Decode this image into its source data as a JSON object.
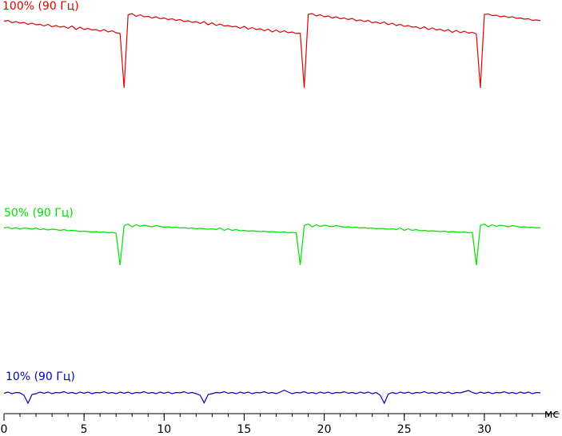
{
  "chart_data": {
    "type": "line",
    "x_label": "мс",
    "xlim": [
      0,
      34.7
    ],
    "xticks": [
      0,
      5,
      10,
      15,
      20,
      25,
      30
    ],
    "xminorticks": [
      0,
      1,
      2,
      3,
      4,
      5,
      6,
      7,
      8,
      9,
      10,
      11,
      12,
      13,
      14,
      15,
      16,
      17,
      18,
      19,
      20,
      21,
      22,
      23,
      24,
      25,
      26,
      27,
      28,
      29,
      30,
      31,
      32,
      33,
      34
    ],
    "x": [
      0,
      0.25,
      0.5,
      0.75,
      1,
      1.25,
      1.5,
      1.75,
      2,
      2.25,
      2.5,
      2.75,
      3,
      3.25,
      3.5,
      3.75,
      4,
      4.25,
      4.5,
      4.75,
      5,
      5.25,
      5.5,
      5.75,
      6,
      6.25,
      6.5,
      6.75,
      7,
      7.25,
      7.5,
      7.75,
      8,
      8.25,
      8.5,
      8.75,
      9,
      9.25,
      9.5,
      9.75,
      10,
      10.25,
      10.5,
      10.75,
      11,
      11.25,
      11.5,
      11.75,
      12,
      12.25,
      12.5,
      12.75,
      13,
      13.25,
      13.5,
      13.75,
      14,
      14.25,
      14.5,
      14.75,
      15,
      15.25,
      15.5,
      15.75,
      16,
      16.25,
      16.5,
      16.75,
      17,
      17.25,
      17.5,
      17.75,
      18,
      18.25,
      18.5,
      18.75,
      19,
      19.25,
      19.5,
      19.75,
      20,
      20.25,
      20.5,
      20.75,
      21,
      21.25,
      21.5,
      21.75,
      22,
      22.25,
      22.5,
      22.75,
      23,
      23.25,
      23.5,
      23.75,
      24,
      24.25,
      24.5,
      24.75,
      25,
      25.25,
      25.5,
      25.75,
      26,
      26.25,
      26.5,
      26.75,
      27,
      27.25,
      27.5,
      27.75,
      28,
      28.25,
      28.5,
      28.75,
      29,
      29.25,
      29.5,
      29.75,
      30,
      30.25,
      30.5,
      30.75,
      31,
      31.25,
      31.5,
      31.75,
      32,
      32.25,
      32.5,
      32.75,
      33,
      33.25,
      33.5
    ],
    "series": [
      {
        "name": "100% (90 Гц)",
        "color": "#e00000",
        "values": [
          102.7,
          102.9,
          102.3,
          102.6,
          102.2,
          102.4,
          101.9,
          102.2,
          101.8,
          101.9,
          101.5,
          101.9,
          101.3,
          101.6,
          101.2,
          101.4,
          100.9,
          101.5,
          100.6,
          101.2,
          100.6,
          100.9,
          100.5,
          100.6,
          100.2,
          100.6,
          100.0,
          100.3,
          99.8,
          99.6,
          86.0,
          104.3,
          104.6,
          103.9,
          104.3,
          103.8,
          103.9,
          103.5,
          103.8,
          103.3,
          103.5,
          103.1,
          103.3,
          102.9,
          103.1,
          102.6,
          102.8,
          102.4,
          102.6,
          102.1,
          102.6,
          101.8,
          102.3,
          101.6,
          102.0,
          101.5,
          101.6,
          101.3,
          101.4,
          100.9,
          101.4,
          100.7,
          101.1,
          100.6,
          100.8,
          100.3,
          100.7,
          100.0,
          100.5,
          99.9,
          100.3,
          99.8,
          100.0,
          99.6,
          99.7,
          86.0,
          104.4,
          104.6,
          104.0,
          104.3,
          103.8,
          104.0,
          103.5,
          103.8,
          103.3,
          103.5,
          103.1,
          103.4,
          102.8,
          103.0,
          102.6,
          102.9,
          102.3,
          102.5,
          102.1,
          102.5,
          101.8,
          102.2,
          101.6,
          101.9,
          101.4,
          101.6,
          101.2,
          101.3,
          100.8,
          101.3,
          100.6,
          101.0,
          100.5,
          100.7,
          100.2,
          100.6,
          99.9,
          100.4,
          99.8,
          100.2,
          99.7,
          99.9,
          99.5,
          86.0,
          104.4,
          104.5,
          104.1,
          104.2,
          103.8,
          104.0,
          103.6,
          103.8,
          103.4,
          103.5,
          103.2,
          103.3,
          102.9,
          103.0,
          102.8
        ]
      },
      {
        "name": "50% (90 Гц)",
        "color": "#00e000",
        "values": [
          50.9,
          51.1,
          50.7,
          51.0,
          50.6,
          50.9,
          50.8,
          50.6,
          50.9,
          50.5,
          50.7,
          50.4,
          50.6,
          50.5,
          50.3,
          50.5,
          50.2,
          50.3,
          50.2,
          50.0,
          50.1,
          50.0,
          49.9,
          50.0,
          49.8,
          49.9,
          49.7,
          49.8,
          49.6,
          41.6,
          51.5,
          51.9,
          51.2,
          51.7,
          51.3,
          51.6,
          51.4,
          51.2,
          51.5,
          51.3,
          51.1,
          51.2,
          51.0,
          51.1,
          50.9,
          51.0,
          50.8,
          50.9,
          50.7,
          50.8,
          50.7,
          50.6,
          50.7,
          50.5,
          50.9,
          50.3,
          50.7,
          50.3,
          50.5,
          50.2,
          50.3,
          50.1,
          50.2,
          50.1,
          50.0,
          50.1,
          49.9,
          50.0,
          49.9,
          49.8,
          49.9,
          49.7,
          49.8,
          49.7,
          41.6,
          51.5,
          51.9,
          51.2,
          51.7,
          51.3,
          51.6,
          51.4,
          51.2,
          51.5,
          51.3,
          51.1,
          51.2,
          51.0,
          51.1,
          50.9,
          51.0,
          50.8,
          50.9,
          50.7,
          50.8,
          50.7,
          50.6,
          50.7,
          50.5,
          50.9,
          50.3,
          50.7,
          50.3,
          50.5,
          50.2,
          50.3,
          50.1,
          50.2,
          50.1,
          50.0,
          50.1,
          49.9,
          50.0,
          49.9,
          49.8,
          49.9,
          49.7,
          49.8,
          41.6,
          51.5,
          51.9,
          51.2,
          51.7,
          51.3,
          51.6,
          51.4,
          51.2,
          51.5,
          51.3,
          51.1,
          51.2,
          51.0,
          51.1,
          50.9,
          51.0
        ]
      },
      {
        "name": "10% (90 Гц)",
        "color": "#0000c0",
        "values": [
          9.5,
          9.8,
          9.4,
          9.7,
          9.6,
          9.0,
          7.0,
          9.2,
          9.4,
          9.8,
          9.5,
          9.8,
          9.4,
          9.7,
          9.6,
          9.9,
          9.5,
          9.7,
          9.4,
          9.8,
          9.5,
          9.8,
          9.4,
          9.7,
          9.6,
          9.9,
          9.5,
          9.7,
          9.4,
          9.8,
          9.5,
          9.8,
          9.4,
          9.7,
          9.6,
          9.9,
          9.5,
          9.7,
          9.4,
          9.8,
          9.5,
          9.8,
          9.4,
          9.7,
          9.6,
          9.9,
          9.5,
          9.7,
          9.4,
          9.0,
          7.1,
          9.2,
          9.4,
          9.7,
          9.6,
          9.9,
          9.5,
          9.7,
          9.4,
          9.8,
          9.5,
          9.8,
          9.4,
          9.7,
          9.6,
          9.9,
          9.5,
          9.7,
          9.4,
          9.8,
          10.3,
          9.8,
          9.4,
          9.7,
          9.6,
          9.9,
          9.5,
          9.7,
          9.4,
          9.8,
          9.5,
          9.8,
          9.4,
          9.7,
          9.6,
          9.9,
          9.5,
          9.7,
          9.4,
          9.8,
          9.5,
          9.8,
          9.4,
          9.7,
          9.0,
          7.0,
          9.3,
          9.7,
          9.4,
          9.8,
          9.5,
          9.8,
          9.4,
          9.7,
          9.6,
          9.9,
          9.5,
          9.7,
          9.4,
          9.8,
          9.5,
          9.8,
          9.4,
          9.7,
          9.6,
          9.9,
          10.2,
          9.7,
          9.4,
          9.8,
          9.5,
          9.8,
          9.4,
          9.7,
          9.6,
          9.9,
          9.5,
          9.7,
          9.4,
          9.8,
          9.5,
          9.8,
          9.4,
          9.7,
          9.6
        ]
      }
    ]
  }
}
